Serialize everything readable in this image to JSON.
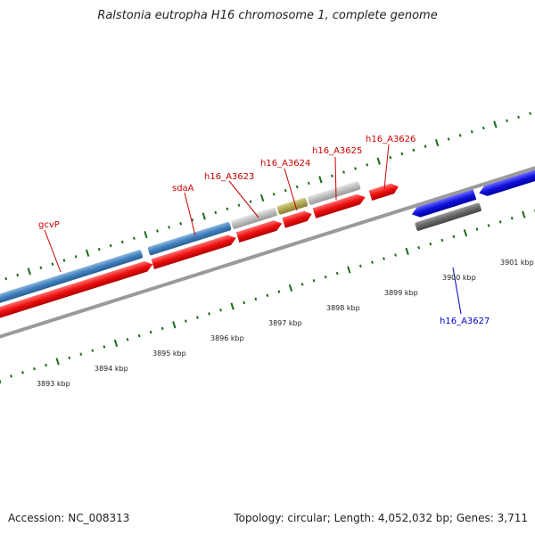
{
  "title": "Ralstonia eutropha H16 chromosome 1, complete genome",
  "footer": {
    "accession": "Accession: NC_008313",
    "summary": "Topology: circular; Length: 4,052,032 bp; Genes: 3,711"
  },
  "colors": {
    "forward_label": "#cc0000",
    "reverse_label": "#0000cc",
    "tick": "#1a6b1a",
    "backbone": "#888888",
    "cds_red": "#ee1111",
    "gene_steelblue": "#3f7fbd",
    "gene_gray": "#b8b8b8",
    "gene_olive": "#b0a650",
    "gene_blue": "#1111dd",
    "gene_darkgray": "#666666"
  },
  "scale": {
    "labels": [
      "3893 kbp",
      "3894 kbp",
      "3895 kbp",
      "3896 kbp",
      "3897 kbp",
      "3898 kbp",
      "3899 kbp",
      "3900 kbp",
      "3901 kbp"
    ]
  },
  "gene_labels": {
    "forward": [
      "gcvP",
      "sdaA",
      "h16_A3623",
      "h16_A3624",
      "h16_A3625",
      "h16_A3626"
    ],
    "reverse": [
      "h16_A3627"
    ]
  }
}
